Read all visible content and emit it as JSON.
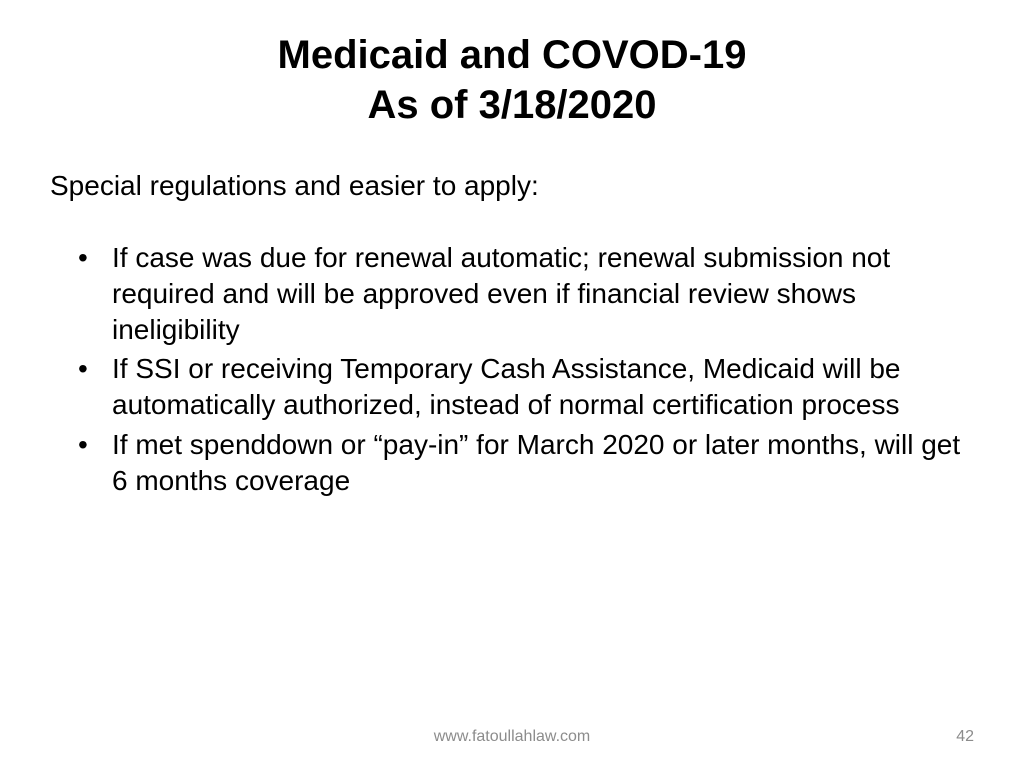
{
  "slide": {
    "title_line1": "Medicaid and COVOD-19",
    "title_line2": "As of 3/18/2020",
    "intro": "Special regulations and easier to apply:",
    "bullets": [
      "If case was due for renewal automatic; renewal submission not required and will be approved even if financial review shows ineligibility",
      "If SSI or receiving Temporary Cash Assistance, Medicaid will be automatically authorized, instead of normal certification process",
      "If met spenddown or “pay-in” for March 2020 or later months, will get 6 months coverage"
    ],
    "footer_url": "www.fatoullahlaw.com",
    "page_number": "42"
  },
  "style": {
    "background_color": "#ffffff",
    "title_fontsize": 40,
    "title_color": "#000000",
    "body_fontsize": 28,
    "body_color": "#000000",
    "footer_fontsize": 16,
    "footer_color": "#8c8c8c",
    "font_family": "Arial"
  }
}
